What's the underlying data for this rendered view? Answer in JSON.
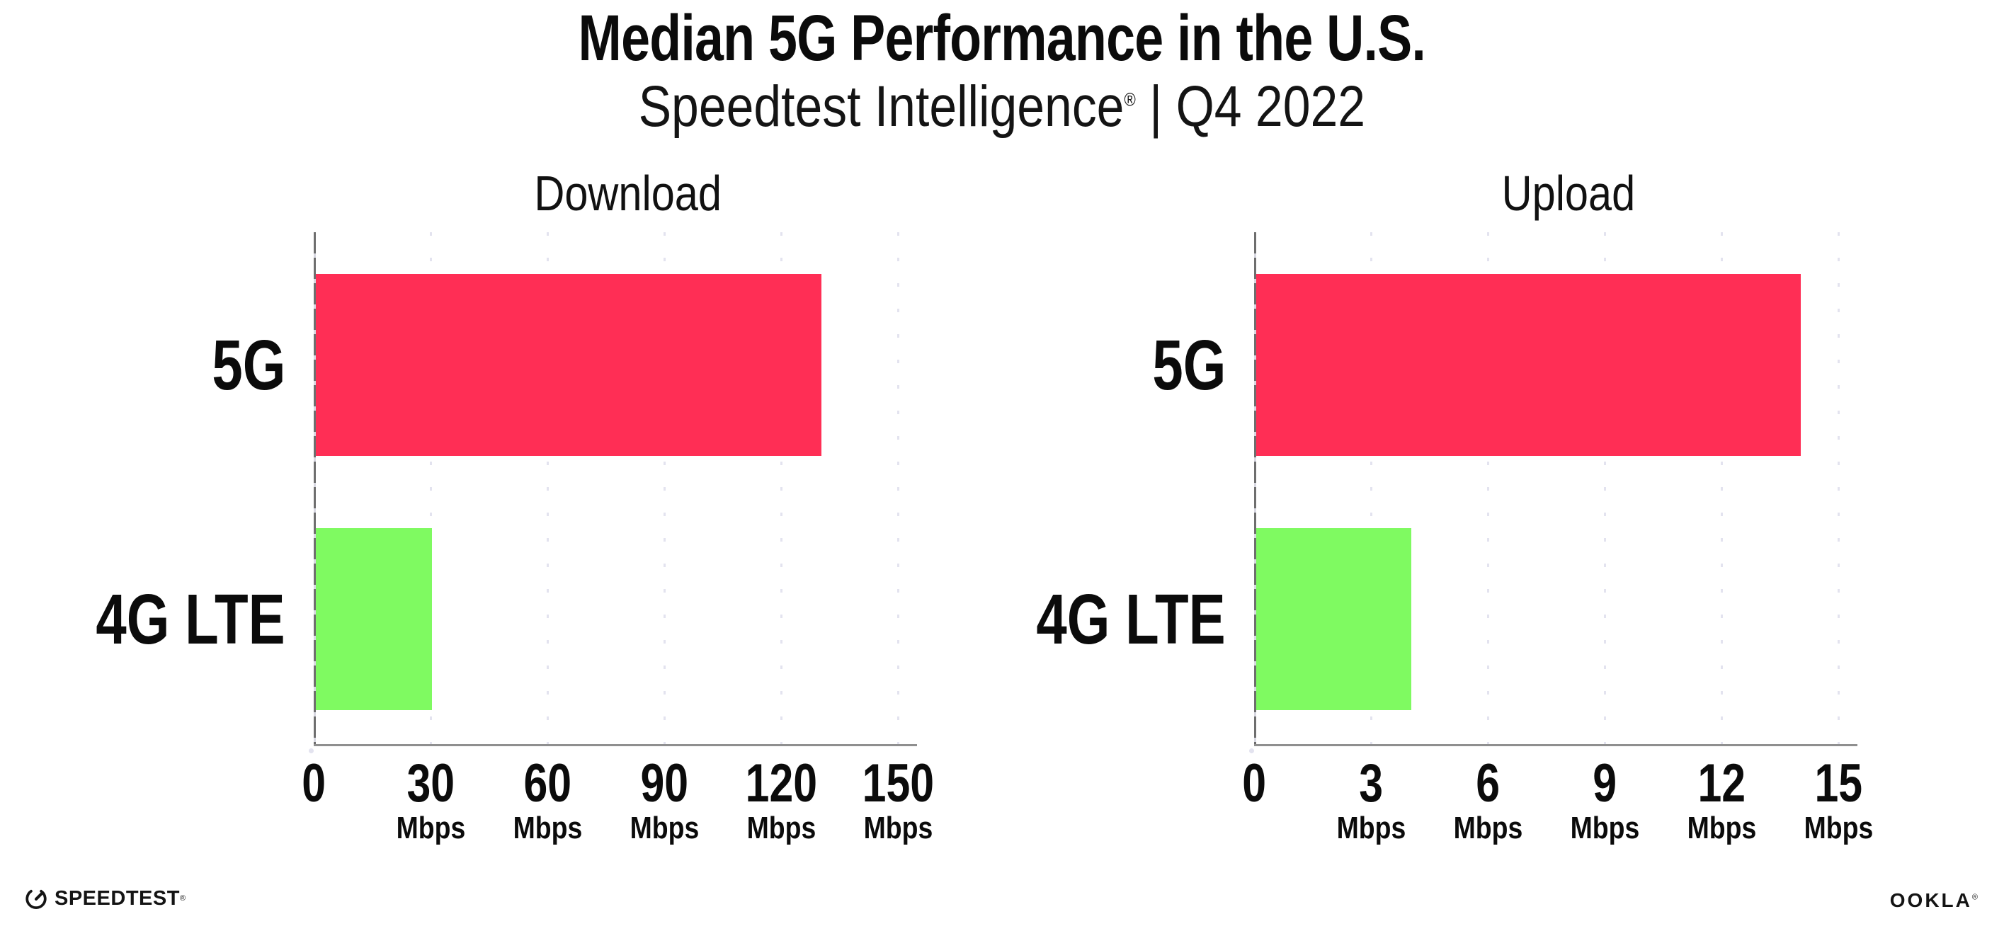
{
  "header": {
    "title": "Median 5G Performance in the U.S.",
    "subtitle_brand": "Speedtest Intelligence",
    "subtitle_reg": "®",
    "subtitle_rest": " | Q4 2022"
  },
  "footer": {
    "speedtest_label": "SPEEDTEST",
    "speedtest_reg": "®",
    "ookla_label": "OOKLA",
    "ookla_reg": "®"
  },
  "colors": {
    "bar_5g": "#ff2e55",
    "bar_4g_lte": "#7ffa61",
    "gridline_dot": "#e3e3ef",
    "x_axis": "#8f8f8f",
    "y_axis": "#6e6e6e",
    "text": "#0b0b0b"
  },
  "icons": {
    "speedtest_gauge": "speedtest-gauge-icon"
  },
  "chart_data": [
    {
      "type": "bar",
      "orientation": "horizontal",
      "title": "Download",
      "categories": [
        "5G",
        "4G LTE"
      ],
      "values": [
        130,
        30
      ],
      "unit": "Mbps",
      "xlim": [
        0,
        150
      ],
      "xticks": [
        0,
        30,
        60,
        90,
        120,
        150
      ],
      "xtick_unit_label": "Mbps",
      "grid": "vertical-dotted",
      "legend": "none",
      "bar_colors": [
        "#ff2e55",
        "#7ffa61"
      ]
    },
    {
      "type": "bar",
      "orientation": "horizontal",
      "title": "Upload",
      "categories": [
        "5G",
        "4G LTE"
      ],
      "values": [
        14,
        4
      ],
      "unit": "Mbps",
      "xlim": [
        0,
        15
      ],
      "xticks": [
        0,
        3,
        6,
        9,
        12,
        15
      ],
      "xtick_unit_label": "Mbps",
      "grid": "vertical-dotted",
      "legend": "none",
      "bar_colors": [
        "#ff2e55",
        "#7ffa61"
      ]
    }
  ]
}
